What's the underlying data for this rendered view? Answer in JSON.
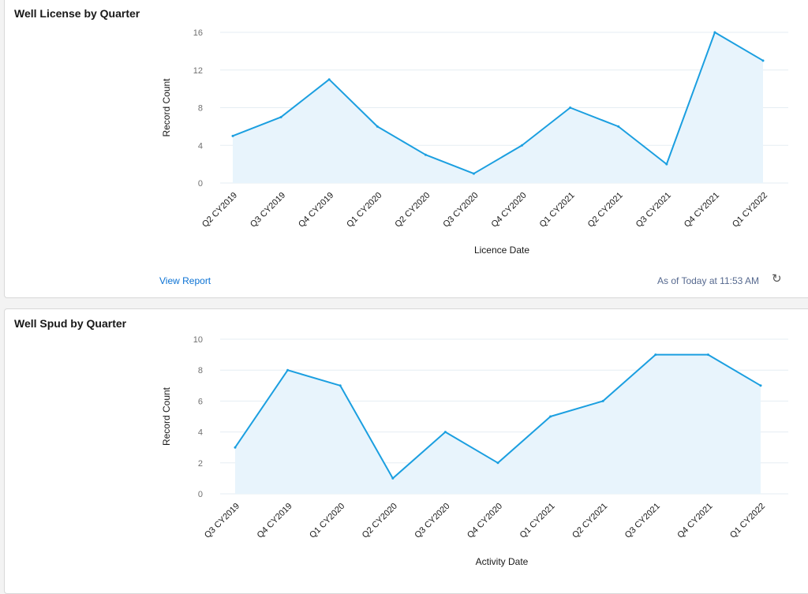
{
  "chart_data": [
    {
      "type": "area",
      "title": "Well License by Quarter",
      "xlabel": "Licence Date",
      "ylabel": "Record Count",
      "ylim": [
        0,
        16
      ],
      "yticks": [
        "0",
        "4",
        "8",
        "12",
        "16"
      ],
      "grid": true,
      "categories": [
        "Q2 CY2019",
        "Q3 CY2019",
        "Q4 CY2019",
        "Q1 CY2020",
        "Q2 CY2020",
        "Q3 CY2020",
        "Q4 CY2020",
        "Q1 CY2021",
        "Q2 CY2021",
        "Q3 CY2021",
        "Q4 CY2021",
        "Q1 CY2022"
      ],
      "values": [
        5,
        7,
        11,
        6,
        3,
        1,
        4,
        8,
        6,
        2,
        16,
        13
      ]
    },
    {
      "type": "area",
      "title": "Well Spud by Quarter",
      "xlabel": "Activity Date",
      "ylabel": "Record Count",
      "ylim": [
        0,
        10
      ],
      "yticks": [
        "0",
        "2",
        "4",
        "6",
        "8",
        "10"
      ],
      "grid": true,
      "categories": [
        "Q3 CY2019",
        "Q4 CY2019",
        "Q1 CY2020",
        "Q2 CY2020",
        "Q3 CY2020",
        "Q4 CY2020",
        "Q1 CY2021",
        "Q2 CY2021",
        "Q3 CY2021",
        "Q4 CY2021",
        "Q1 CY2022"
      ],
      "values": [
        3,
        8,
        7,
        1,
        4,
        2,
        5,
        6,
        9,
        9,
        7
      ]
    }
  ],
  "colors": {
    "line": "#1b9fe0",
    "fill": "#e8f4fc",
    "grid": "#e5edf3",
    "link": "#0b72d4"
  },
  "footer": {
    "view_report": "View Report",
    "timestamp": "As of Today at 11:53 AM",
    "refresh_icon": "refresh-icon"
  }
}
